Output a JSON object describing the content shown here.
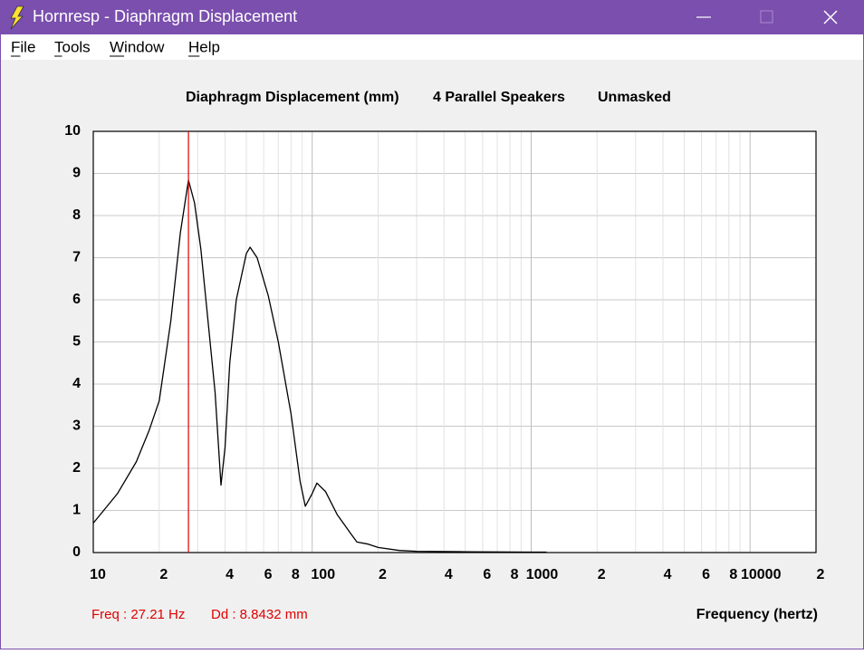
{
  "window": {
    "title": "Hornresp - Diaphragm Displacement"
  },
  "menu": [
    "File",
    "Tools",
    "Window",
    "Help"
  ],
  "chart_data": {
    "type": "line",
    "title": "Diaphragm Displacement (mm)",
    "subtitle": "4 Parallel Speakers",
    "mode": "Unmasked",
    "xlabel": "Frequency (hertz)",
    "xscale": "log",
    "xlim": [
      10,
      20000
    ],
    "ylim": [
      0,
      10
    ],
    "yticks": [
      0,
      1,
      2,
      3,
      4,
      5,
      6,
      7,
      8,
      9,
      10
    ],
    "xticks": [
      10,
      {
        "value": 20,
        "label": "2"
      },
      {
        "value": 40,
        "label": "4"
      },
      {
        "value": 60,
        "label": "6"
      },
      {
        "value": 80,
        "label": "8"
      },
      100,
      {
        "value": 200,
        "label": "2"
      },
      {
        "value": 400,
        "label": "4"
      },
      {
        "value": 600,
        "label": "6"
      },
      {
        "value": 800,
        "label": "8"
      },
      1000,
      {
        "value": 2000,
        "label": "2"
      },
      {
        "value": 4000,
        "label": "4"
      },
      {
        "value": 6000,
        "label": "6"
      },
      {
        "value": 8000,
        "label": "8"
      },
      10000,
      {
        "value": 20000,
        "label": "2"
      }
    ],
    "xgrid_minor": [
      30,
      50,
      70,
      90,
      300,
      500,
      700,
      900,
      3000,
      5000,
      7000,
      9000
    ],
    "grid": true,
    "series": [
      {
        "color": "#000000",
        "x": [
          10,
          12.9,
          15.7,
          18,
          20,
          22.6,
          25,
          27.21,
          29,
          31,
          33,
          36,
          38.3,
          40,
          42,
          45,
          50,
          52,
          56,
          63,
          70,
          80,
          88,
          93,
          100,
          105,
          115,
          130,
          150,
          160,
          180,
          200,
          250,
          300,
          500,
          1000,
          1175
        ],
        "values": [
          0.7,
          1.4,
          2.15,
          2.9,
          3.6,
          5.5,
          7.6,
          8.84,
          8.3,
          7.2,
          5.8,
          3.8,
          1.6,
          2.5,
          4.5,
          6.0,
          7.1,
          7.25,
          7.0,
          6.1,
          5.0,
          3.3,
          1.7,
          1.1,
          1.4,
          1.65,
          1.45,
          0.9,
          0.45,
          0.25,
          0.2,
          0.12,
          0.05,
          0.03,
          0.02,
          0.01,
          0.01
        ]
      }
    ],
    "cursor": {
      "x": 27.21,
      "color": "#e00000",
      "label": "Freq : 27.21 Hz",
      "value_label": "Dd : 8.8432 mm"
    }
  }
}
